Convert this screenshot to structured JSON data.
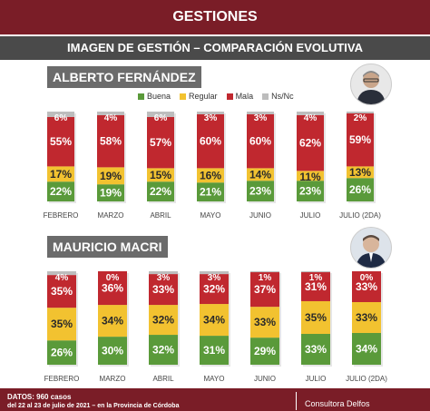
{
  "header": {
    "title": "GESTIONES",
    "subtitle": "IMAGEN DE GESTIÓN – COMPARACIÓN EVOLUTIVA"
  },
  "colors": {
    "buena": "#5a9a3a",
    "regular": "#f2c230",
    "mala": "#c0282f",
    "nsnc": "#bdbdbd",
    "brand": "#7a1d27"
  },
  "legend": [
    {
      "key": "buena",
      "label": "Buena",
      "color": "#5a9a3a"
    },
    {
      "key": "regular",
      "label": "Regular",
      "color": "#f2c230"
    },
    {
      "key": "mala",
      "label": "Mala",
      "color": "#c0282f"
    },
    {
      "key": "nsnc",
      "label": "Ns/Nc",
      "color": "#bdbdbd"
    }
  ],
  "chart_data": [
    {
      "type": "bar",
      "stacked": true,
      "title": "ALBERTO FERNÁNDEZ",
      "categories": [
        "FEBRERO",
        "MARZO",
        "ABRIL",
        "MAYO",
        "JUNIO",
        "JULIO",
        "JULIO (2DA)"
      ],
      "series": [
        {
          "name": "Buena",
          "values": [
            22,
            19,
            22,
            21,
            23,
            23,
            26
          ]
        },
        {
          "name": "Regular",
          "values": [
            17,
            19,
            15,
            16,
            14,
            11,
            13
          ]
        },
        {
          "name": "Mala",
          "values": [
            55,
            58,
            57,
            60,
            60,
            62,
            59
          ]
        },
        {
          "name": "Ns/Nc",
          "values": [
            6,
            4,
            6,
            3,
            3,
            4,
            2
          ]
        }
      ],
      "unit": "%",
      "ylim": [
        0,
        100
      ]
    },
    {
      "type": "bar",
      "stacked": true,
      "title": "MAURICIO MACRI",
      "categories": [
        "FEBRERO",
        "MARZO",
        "ABRIL",
        "MAYO",
        "JUNIO",
        "JULIO",
        "JULIO (2DA)"
      ],
      "series": [
        {
          "name": "Buena",
          "values": [
            26,
            30,
            32,
            31,
            29,
            33,
            34
          ]
        },
        {
          "name": "Regular",
          "values": [
            35,
            34,
            32,
            34,
            33,
            35,
            33
          ]
        },
        {
          "name": "Mala",
          "values": [
            35,
            36,
            33,
            32,
            37,
            31,
            33
          ]
        },
        {
          "name": "Ns/Nc",
          "values": [
            4,
            0,
            3,
            3,
            1,
            1,
            0
          ]
        }
      ],
      "unit": "%",
      "ylim": [
        0,
        100
      ]
    }
  ],
  "footer": {
    "datos": "DATOS: 960 casos",
    "fecha": "del 22 al 23 de julio de 2021 – en la Provincia de Córdoba",
    "consultora": "Consultora Delfos"
  }
}
